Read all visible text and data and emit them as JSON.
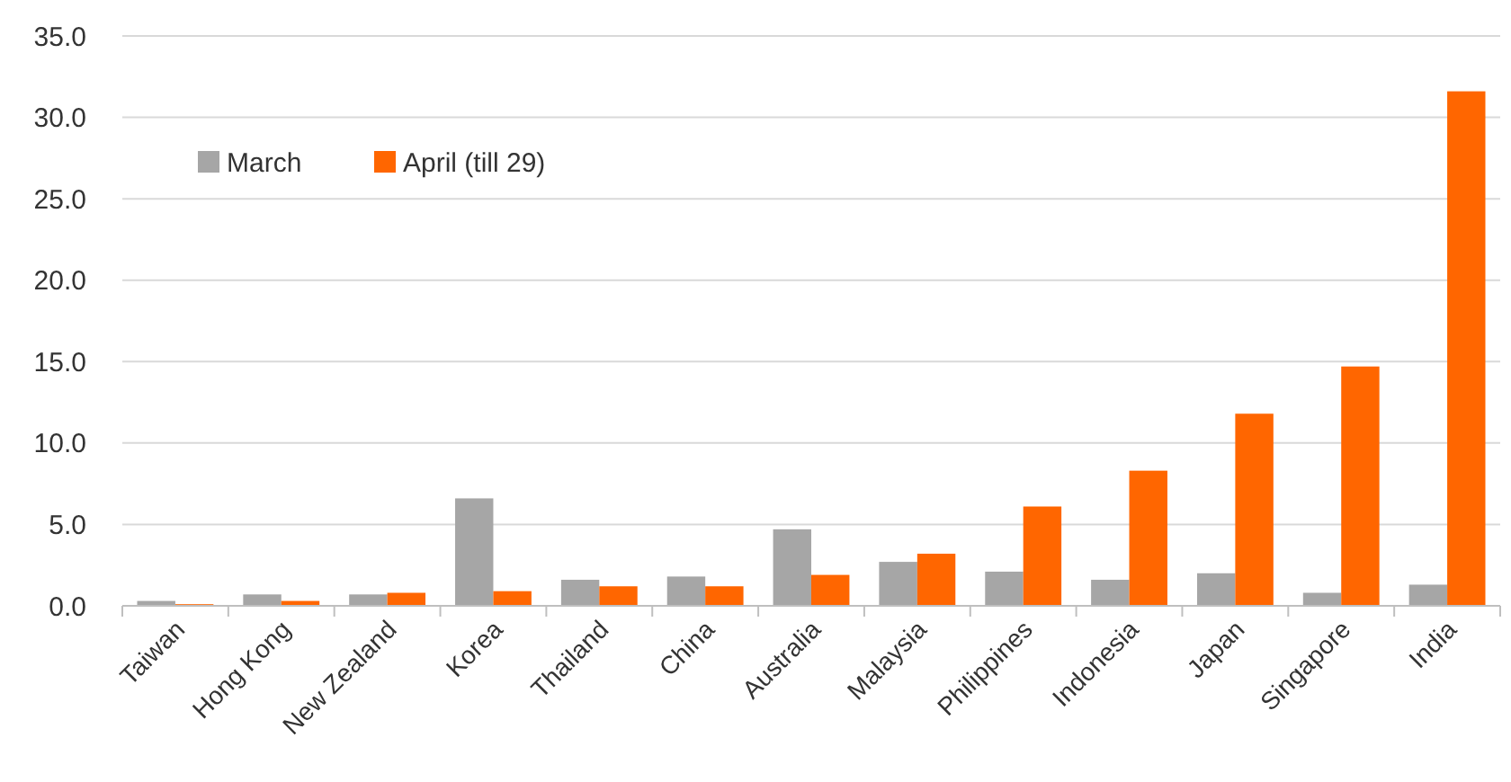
{
  "chart_data": {
    "type": "bar",
    "categories": [
      "Taiwan",
      "Hong Kong",
      "New Zealand",
      "Korea",
      "Thailand",
      "China",
      "Australia",
      "Malaysia",
      "Philippines",
      "Indonesia",
      "Japan",
      "Singapore",
      "India"
    ],
    "series": [
      {
        "name": "March",
        "color": "#a6a6a6",
        "values": [
          0.3,
          0.7,
          0.7,
          6.6,
          1.6,
          1.8,
          4.7,
          2.7,
          2.1,
          1.6,
          2.0,
          0.8,
          1.3
        ]
      },
      {
        "name": "April (till 29)",
        "color": "#ff6600",
        "values": [
          0.1,
          0.3,
          0.8,
          0.9,
          1.2,
          1.2,
          1.9,
          3.2,
          6.1,
          8.3,
          11.8,
          14.7,
          31.6
        ]
      }
    ],
    "ylim": [
      0,
      35
    ],
    "yticks": [
      {
        "value": 0,
        "label": "0.0"
      },
      {
        "value": 5,
        "label": "5.0"
      },
      {
        "value": 10,
        "label": "10.0"
      },
      {
        "value": 15,
        "label": "15.0"
      },
      {
        "value": 20,
        "label": "20.0"
      },
      {
        "value": 25,
        "label": "25.0"
      },
      {
        "value": 30,
        "label": "30.0"
      },
      {
        "value": 35,
        "label": "35.0"
      }
    ],
    "grid": "y",
    "legend": "top left"
  }
}
